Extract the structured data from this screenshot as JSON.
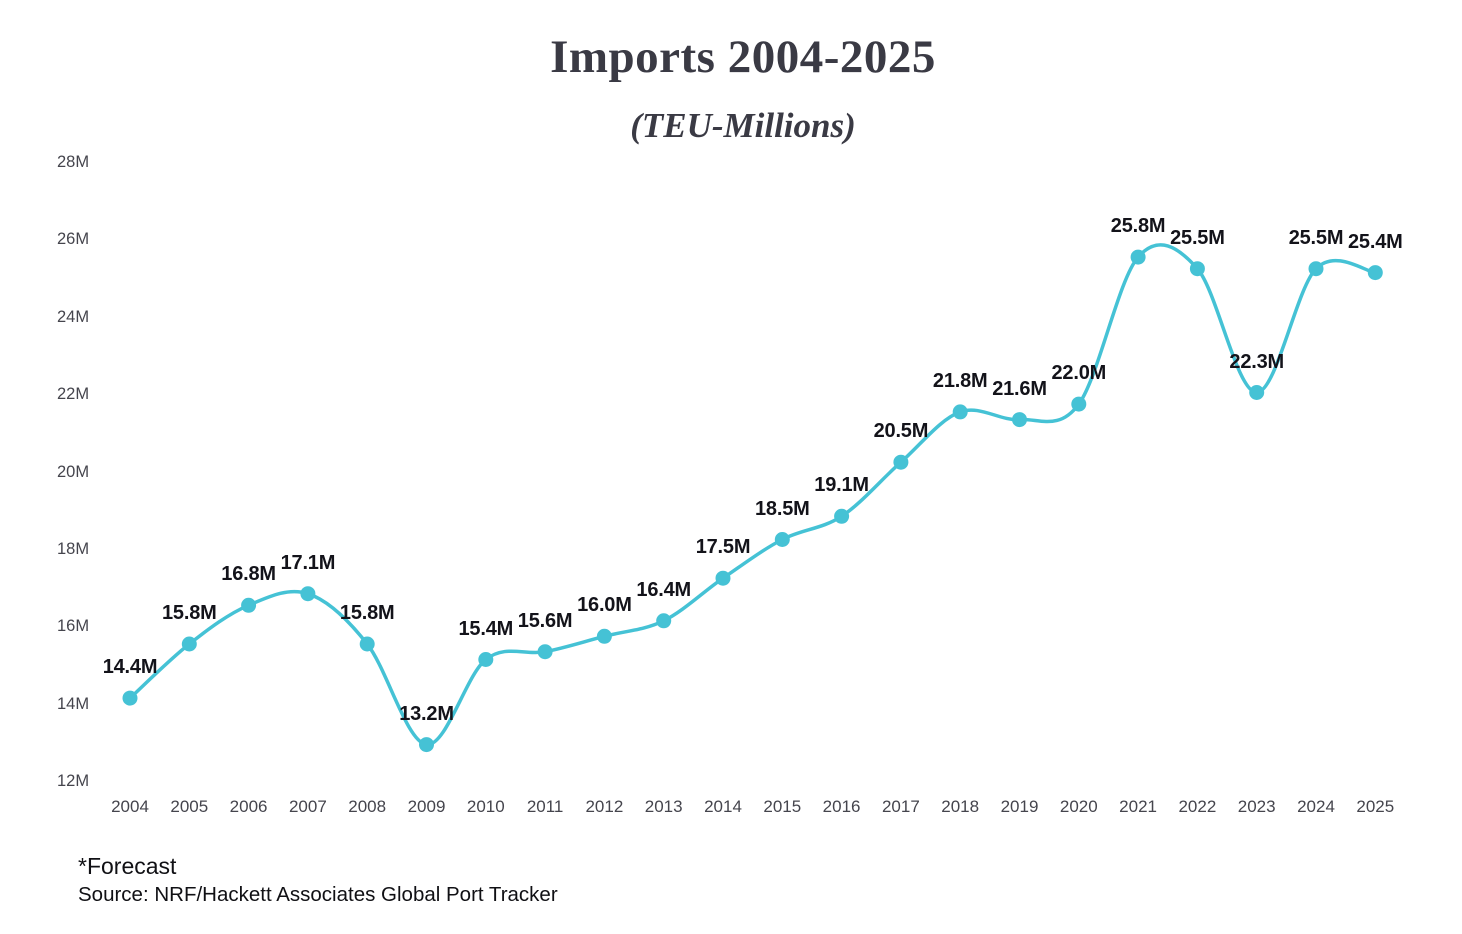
{
  "header": {
    "title": "Imports 2004-2025",
    "subtitle": "(TEU-Millions)"
  },
  "footer": {
    "forecast_note": "*Forecast",
    "source": "Source: NRF/Hackett Associates Global Port Tracker"
  },
  "chart_data": {
    "type": "line",
    "title": "Imports 2004-2025",
    "subtitle": "(TEU-Millions)",
    "xlabel": "",
    "ylabel": "",
    "categories": [
      "2004",
      "2005",
      "2006",
      "2007",
      "2008",
      "2009",
      "2010",
      "2011",
      "2012",
      "2013",
      "2014",
      "2015",
      "2016",
      "2017",
      "2018",
      "2019",
      "2020",
      "2021",
      "2022",
      "2023",
      "2024",
      "2025"
    ],
    "values": [
      14.4,
      15.8,
      16.8,
      17.1,
      15.8,
      13.2,
      15.4,
      15.6,
      16.0,
      16.4,
      17.5,
      18.5,
      19.1,
      20.5,
      21.8,
      21.6,
      22.0,
      25.8,
      25.5,
      22.3,
      25.5,
      25.4
    ],
    "point_labels": [
      "14.4M",
      "15.8M",
      "16.8M",
      "17.1M",
      "15.8M",
      "13.2M",
      "15.4M",
      "15.6M",
      "16.0M",
      "16.4M",
      "17.5M",
      "18.5M",
      "19.1M",
      "20.5M",
      "21.8M",
      "21.6M",
      "22.0M",
      "25.8M",
      "25.5M",
      "22.3M",
      "25.5M",
      "25.4M"
    ],
    "y_ticks": [
      {
        "value": 28,
        "label": "28M"
      },
      {
        "value": 26,
        "label": "26M"
      },
      {
        "value": 24,
        "label": "24M"
      },
      {
        "value": 22,
        "label": "22M"
      },
      {
        "value": 20,
        "label": "20M"
      },
      {
        "value": 18,
        "label": "18M"
      },
      {
        "value": 16,
        "label": "16M"
      },
      {
        "value": 14,
        "label": "14M"
      },
      {
        "value": 12,
        "label": "12M"
      }
    ],
    "ylim": [
      12,
      28
    ],
    "grid": false,
    "legend_position": "none",
    "line_color": "#45c2d5",
    "marker_color": "#45c2d5",
    "label_color": "#13131a"
  }
}
